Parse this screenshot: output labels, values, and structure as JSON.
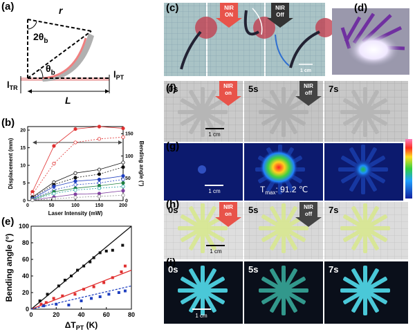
{
  "panel_labels": [
    "(a)",
    "(b)",
    "(c)",
    "(d)",
    "(e)",
    "(f)",
    "(g)",
    "(h)",
    "(i)"
  ],
  "diagram_a": {
    "r": "r",
    "angle_top": {
      "main": "2θ",
      "sub": "b"
    },
    "angle_bottom": {
      "main": "θ",
      "sub": "b"
    },
    "l_tr": {
      "main": "l",
      "sub": "TR"
    },
    "l_pt": {
      "main": "l",
      "sub": "PT"
    },
    "length": "L"
  },
  "photos": {
    "c": {
      "badges": [
        [
          "NIR",
          "ON"
        ],
        [
          "NIR",
          "Off"
        ]
      ],
      "scale": "1 cm"
    },
    "f": {
      "times": [
        "0s",
        "5s",
        "7s"
      ],
      "badges": [
        [
          "NIR",
          "on"
        ],
        [
          "NIR",
          "off"
        ]
      ],
      "scale": "1 cm"
    },
    "g": {
      "scale": "1 cm",
      "tmax": {
        "main": "T",
        "sub": "max",
        "after": ": 91.2 ℃"
      }
    },
    "h": {
      "times": [
        "0s",
        "5s",
        "7s"
      ],
      "badges": [
        [
          "NIR",
          "on"
        ],
        [
          "NIR",
          "off"
        ]
      ],
      "scale": "1 cm"
    },
    "i": {
      "times": [
        "0s",
        "5s",
        "7s"
      ],
      "scale": "1 cm"
    }
  },
  "chart_data": [
    {
      "type": "line",
      "x_label": "Laser Intensity (mW)",
      "y_label": "Displacement (mm)",
      "y2_label": "Bending angle (°)",
      "x": [
        10,
        55,
        100,
        150,
        200
      ],
      "xlim": [
        0,
        200
      ],
      "xticks": [
        0,
        50,
        100,
        150,
        200
      ],
      "ylim": [
        0,
        21
      ],
      "yticks": [
        0,
        5,
        10,
        15,
        20
      ],
      "y2lim": [
        0,
        166
      ],
      "y2ticks": [
        0,
        50,
        100,
        150
      ],
      "series": [
        {
          "color": "#e03030",
          "dashed": false,
          "filled": true,
          "values": [
            2.5,
            15.5,
            20.3,
            21,
            20.5
          ]
        },
        {
          "color": "#e03030",
          "dashed": true,
          "filled": false,
          "values": [
            1.8,
            10.5,
            16.5,
            17.5,
            18
          ]
        },
        {
          "color": "#111111",
          "dashed": false,
          "filled": false,
          "values": [
            1,
            5.2,
            7.8,
            8.8,
            10.8
          ]
        },
        {
          "color": "#111111",
          "dashed": true,
          "filled": true,
          "values": [
            0.8,
            4.5,
            6.5,
            7.5,
            9.5
          ]
        },
        {
          "color": "#2040c0",
          "dashed": false,
          "filled": true,
          "values": [
            0.5,
            4,
            5.5,
            6,
            7
          ]
        },
        {
          "color": "#2040c0",
          "dashed": true,
          "filled": false,
          "values": [
            0.5,
            3,
            4.5,
            5,
            6
          ]
        },
        {
          "color": "#208040",
          "dashed": false,
          "filled": true,
          "values": [
            0.3,
            2.5,
            3.5,
            4.2,
            5
          ]
        },
        {
          "color": "#20a0a0",
          "dashed": true,
          "filled": false,
          "values": [
            0.2,
            2,
            3,
            3.5,
            4
          ]
        },
        {
          "color": "#8040a0",
          "dashed": false,
          "filled": true,
          "values": [
            0.2,
            1,
            1.8,
            2,
            2.8
          ]
        },
        {
          "color": "#888888",
          "dashed": true,
          "filled": false,
          "values": [
            0.1,
            0.5,
            0.9,
            1.2,
            1.5
          ]
        }
      ]
    },
    {
      "type": "scatter",
      "x_label": {
        "main": "ΔT",
        "sub": "PT",
        "after": " (K)"
      },
      "y_label": "Bending angle (°)",
      "xlim": [
        0,
        80
      ],
      "xticks": [
        0,
        20,
        40,
        60,
        80
      ],
      "ylim": [
        0,
        100
      ],
      "yticks": [
        0,
        20,
        40,
        60,
        80,
        100
      ],
      "series": [
        {
          "color": "#111111",
          "x": [
            7,
            13,
            22,
            27,
            32,
            37,
            42,
            47,
            50,
            55,
            60,
            65,
            73
          ],
          "values": [
            10,
            18,
            28,
            35,
            40,
            47,
            52,
            57,
            62,
            68,
            70,
            71,
            77
          ],
          "fit_x": [
            0,
            80
          ],
          "fit_values": [
            0,
            100
          ],
          "fit_dashed": false
        },
        {
          "color": "#e03030",
          "x": [
            8,
            12,
            18,
            25,
            35,
            42,
            50,
            58,
            65,
            72,
            75
          ],
          "values": [
            6,
            8,
            13,
            16,
            18,
            24,
            27,
            32,
            38,
            45,
            52
          ],
          "fit_x": [
            0,
            80
          ],
          "fit_values": [
            0,
            47
          ],
          "fit_dashed": false
        },
        {
          "color": "#2040c0",
          "x": [
            10,
            20,
            30,
            40,
            48,
            55,
            62,
            70,
            75
          ],
          "values": [
            4,
            6,
            5,
            10,
            13,
            15,
            18,
            20,
            22
          ],
          "fit_x": [
            0,
            80
          ],
          "fit_values": [
            0,
            28
          ],
          "fit_dashed": true
        }
      ]
    }
  ]
}
